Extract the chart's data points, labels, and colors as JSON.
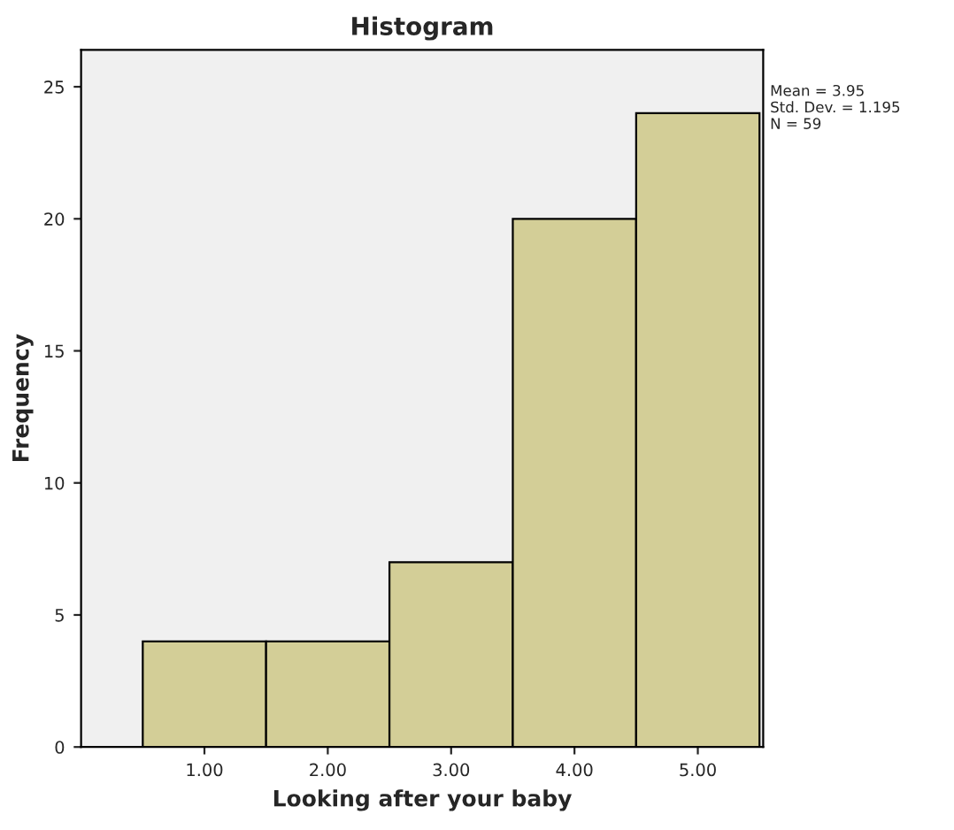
{
  "chart_data": {
    "type": "histogram",
    "title": "Histogram",
    "xlabel": "Looking after your baby",
    "ylabel": "Frequency",
    "bins": [
      0.5,
      1.5,
      2.5,
      3.5,
      4.5,
      5.5
    ],
    "values": [
      4,
      4,
      7,
      20,
      24
    ],
    "color": "#d3ce97",
    "xlim": [
      0,
      5.53
    ],
    "ylim": [
      0,
      26.4
    ],
    "xticks": [
      {
        "value": 1,
        "label": "1.00"
      },
      {
        "value": 2,
        "label": "2.00"
      },
      {
        "value": 3,
        "label": "3.00"
      },
      {
        "value": 4,
        "label": "4.00"
      },
      {
        "value": 5,
        "label": "5.00"
      }
    ],
    "yticks": [
      0,
      5,
      10,
      15,
      20,
      25
    ],
    "annotations": [
      "Mean = 3.95\nStd. Dev. = 1.195\nN = 59"
    ],
    "grid": false
  }
}
